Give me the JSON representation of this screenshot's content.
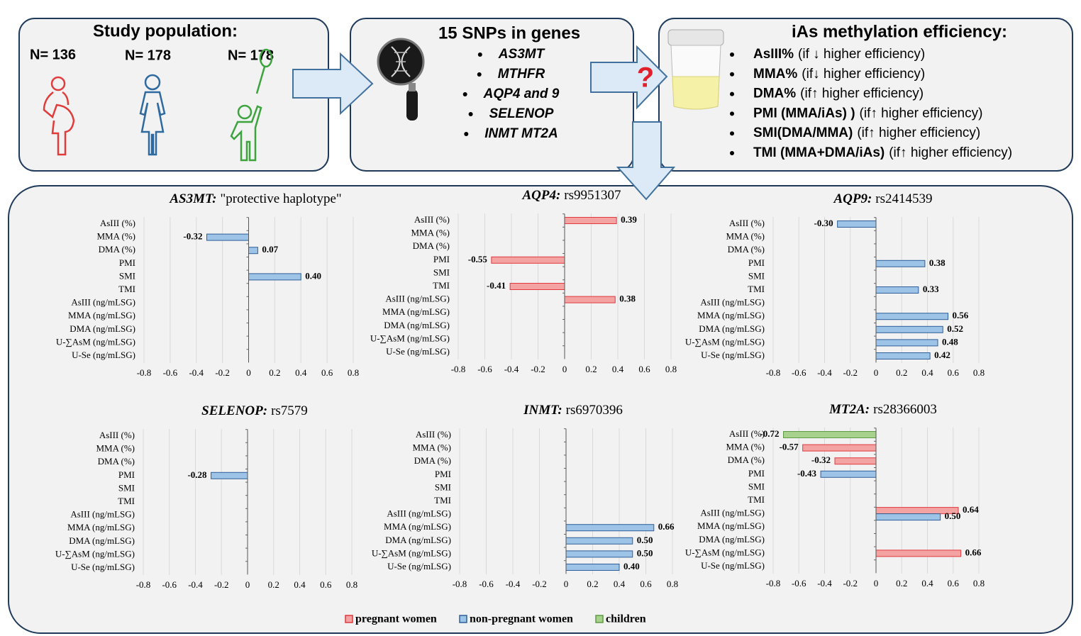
{
  "population": {
    "title": "Study population:",
    "groups": [
      "N= 136",
      "N= 178",
      "N= 178"
    ]
  },
  "snps": {
    "title": "15 SNPs in genes",
    "genes": [
      "AS3MT",
      "MTHFR",
      "AQP4 and 9",
      "SELENOP",
      "INMT MT2A"
    ]
  },
  "question": "?",
  "efficiency": {
    "title": "iAs methylation efficiency:",
    "items": [
      {
        "term": "AsIII%",
        "note": "(if ↓ higher efficiency)"
      },
      {
        "term": "MMA%",
        "note": "(if↓ higher efficiency)"
      },
      {
        "term": "DMA%",
        "note": "(if↑ higher efficiency)"
      },
      {
        "term": "PMI (MMA/iAs) )",
        "note": "(if↑ higher efficiency)"
      },
      {
        "term": "SMI(DMA/MMA)",
        "note": "(if↑ higher efficiency)"
      },
      {
        "term": "TMI (MMA+DMA/iAs)",
        "note": "(if↑ higher efficiency)"
      }
    ]
  },
  "legend": [
    {
      "name": "pregnant women",
      "color": "#f4a3a3",
      "edge": "#e0393e"
    },
    {
      "name": "non-pregnant women",
      "color": "#9dc3e6",
      "edge": "#2e5f9a"
    },
    {
      "name": "children",
      "color": "#a9d18e",
      "edge": "#5f9a45"
    }
  ],
  "chart_data": [
    {
      "type": "bar",
      "orientation": "horizontal",
      "title": "AS3MT:",
      "subtitle": "\"protective haplotype\"",
      "categories": [
        "AsIII (%)",
        "MMA (%)",
        "DMA (%)",
        "PMI",
        "SMI",
        "TMI",
        "AsIII (ng/mLSG)",
        "MMA  (ng/mLSG)",
        "DMA (ng/mLSG)",
        "U-∑AsM (ng/mLSG)",
        "U-Se (ng/mLSG)"
      ],
      "series": [
        {
          "values": [
            null,
            null,
            null,
            null,
            null,
            null,
            null,
            null,
            null,
            null,
            null
          ],
          "value_labels": [
            null,
            null,
            null,
            null,
            null,
            null,
            null,
            null,
            null,
            null,
            null
          ]
        },
        {
          "values": [
            null,
            -0.32,
            0.07,
            null,
            0.4,
            null,
            null,
            null,
            null,
            null,
            null
          ],
          "value_labels": [
            null,
            "-0.32",
            "0.07",
            null,
            "0.40",
            null,
            null,
            null,
            null,
            null,
            null
          ]
        },
        {
          "values": [
            null,
            null,
            null,
            null,
            null,
            null,
            null,
            null,
            null,
            null,
            null
          ],
          "value_labels": [
            null,
            null,
            null,
            null,
            null,
            null,
            null,
            null,
            null,
            null,
            null
          ]
        }
      ],
      "xlim": [
        -0.8,
        0.8
      ],
      "xticks": [
        -0.8,
        -0.6,
        -0.4,
        -0.2,
        0,
        0.2,
        0.4,
        0.6,
        0.8
      ],
      "grid": true
    },
    {
      "type": "bar",
      "orientation": "horizontal",
      "title": "AQP4:",
      "subtitle": "rs9951307",
      "categories": [
        "AsIII (%)",
        "MMA (%)",
        "DMA (%)",
        "PMI",
        "SMI",
        "TMI",
        "AsIII (ng/mLSG)",
        "MMA  (ng/mLSG)",
        "DMA (ng/mLSG)",
        "U-∑AsM (ng/mLSG)",
        "U-Se (ng/mLSG)"
      ],
      "series": [
        {
          "values": [
            0.39,
            null,
            null,
            -0.55,
            null,
            -0.41,
            0.38,
            null,
            null,
            null,
            null
          ],
          "value_labels": [
            "0.39",
            null,
            null,
            "-0.55",
            null,
            "-0.41",
            "0.38",
            null,
            null,
            null,
            null
          ]
        },
        {
          "values": [
            null,
            null,
            null,
            null,
            null,
            null,
            null,
            null,
            null,
            null,
            null
          ],
          "value_labels": [
            null,
            null,
            null,
            null,
            null,
            null,
            null,
            null,
            null,
            null,
            null
          ]
        },
        {
          "values": [
            null,
            null,
            null,
            null,
            null,
            null,
            null,
            null,
            null,
            null,
            null
          ],
          "value_labels": [
            null,
            null,
            null,
            null,
            null,
            null,
            null,
            null,
            null,
            null,
            null
          ]
        }
      ],
      "xlim": [
        -0.8,
        0.8
      ],
      "xticks": [
        -0.8,
        -0.6,
        -0.4,
        -0.2,
        0,
        0.2,
        0.4,
        0.6,
        0.8
      ],
      "grid": true
    },
    {
      "type": "bar",
      "orientation": "horizontal",
      "title": "AQP9:",
      "subtitle": "rs2414539",
      "categories": [
        "AsIII (%)",
        "MMA (%)",
        "DMA (%)",
        "PMI",
        "SMI",
        "TMI",
        "AsIII (ng/mLSG)",
        "MMA  (ng/mLSG)",
        "DMA (ng/mLSG)",
        "U-∑AsM (ng/mLSG)",
        "U-Se (ng/mLSG)"
      ],
      "series": [
        {
          "values": [
            null,
            null,
            null,
            null,
            null,
            null,
            null,
            null,
            null,
            null,
            null
          ],
          "value_labels": [
            null,
            null,
            null,
            null,
            null,
            null,
            null,
            null,
            null,
            null,
            null
          ]
        },
        {
          "values": [
            -0.3,
            null,
            null,
            0.38,
            null,
            0.33,
            null,
            0.56,
            0.52,
            0.48,
            0.42
          ],
          "value_labels": [
            "-0.30",
            null,
            null,
            "0.38",
            null,
            "0.33",
            null,
            "0.56",
            "0.52",
            "0.48",
            "0.42"
          ]
        },
        {
          "values": [
            null,
            null,
            null,
            null,
            null,
            null,
            null,
            null,
            null,
            null,
            null
          ],
          "value_labels": [
            null,
            null,
            null,
            null,
            null,
            null,
            null,
            null,
            null,
            null,
            null
          ]
        }
      ],
      "xlim": [
        -0.8,
        0.8
      ],
      "xticks": [
        -0.8,
        -0.6,
        -0.4,
        -0.2,
        0,
        0.2,
        0.4,
        0.6,
        0.8
      ],
      "grid": true
    },
    {
      "type": "bar",
      "orientation": "horizontal",
      "title": "SELENOP:",
      "subtitle": "rs7579",
      "categories": [
        "AsIII (%)",
        "MMA (%)",
        "DMA (%)",
        "PMI",
        "SMI",
        "TMI",
        "AsIII (ng/mLSG)",
        "MMA  (ng/mLSG)",
        "DMA (ng/mLSG)",
        "U-∑AsM (ng/mLSG)",
        "U-Se (ng/mLSG)"
      ],
      "series": [
        {
          "values": [
            null,
            null,
            null,
            null,
            null,
            null,
            null,
            null,
            null,
            null,
            null
          ],
          "value_labels": [
            null,
            null,
            null,
            null,
            null,
            null,
            null,
            null,
            null,
            null,
            null
          ]
        },
        {
          "values": [
            null,
            null,
            null,
            -0.28,
            null,
            null,
            null,
            null,
            null,
            null,
            null
          ],
          "value_labels": [
            null,
            null,
            null,
            "-0.28",
            null,
            null,
            null,
            null,
            null,
            null,
            null
          ]
        },
        {
          "values": [
            null,
            null,
            null,
            null,
            null,
            null,
            null,
            null,
            null,
            null,
            null
          ],
          "value_labels": [
            null,
            null,
            null,
            null,
            null,
            null,
            null,
            null,
            null,
            null,
            null
          ]
        }
      ],
      "xlim": [
        -0.8,
        0.8
      ],
      "xticks": [
        -0.8,
        -0.6,
        -0.4,
        -0.2,
        0,
        0.2,
        0.4,
        0.6,
        0.8
      ],
      "grid": true
    },
    {
      "type": "bar",
      "orientation": "horizontal",
      "title": "INMT:",
      "subtitle": "rs6970396",
      "categories": [
        "AsIII (%)",
        "MMA (%)",
        "DMA (%)",
        "PMI",
        "SMI",
        "TMI",
        "AsIII (ng/mLSG)",
        "MMA  (ng/mLSG)",
        "DMA (ng/mLSG)",
        "U-∑AsM (ng/mLSG)",
        "U-Se (ng/mLSG)"
      ],
      "series": [
        {
          "values": [
            null,
            null,
            null,
            null,
            null,
            null,
            null,
            null,
            null,
            null,
            null
          ],
          "value_labels": [
            null,
            null,
            null,
            null,
            null,
            null,
            null,
            null,
            null,
            null,
            null
          ]
        },
        {
          "values": [
            null,
            null,
            null,
            null,
            null,
            null,
            null,
            0.66,
            0.5,
            0.5,
            0.4
          ],
          "value_labels": [
            null,
            null,
            null,
            null,
            null,
            null,
            null,
            "0.66",
            "0.50",
            "0.50",
            "0.40"
          ]
        },
        {
          "values": [
            null,
            null,
            null,
            null,
            null,
            null,
            null,
            null,
            null,
            null,
            null
          ],
          "value_labels": [
            null,
            null,
            null,
            null,
            null,
            null,
            null,
            null,
            null,
            null,
            null
          ]
        }
      ],
      "xlim": [
        -0.8,
        0.8
      ],
      "xticks": [
        -0.8,
        -0.6,
        -0.4,
        -0.2,
        0,
        0.2,
        0.4,
        0.6,
        0.8
      ],
      "grid": true
    },
    {
      "type": "bar",
      "orientation": "horizontal",
      "title": "MT2A:",
      "subtitle": "rs28366003",
      "categories": [
        "AsIII (%)",
        "MMA (%)",
        "DMA (%)",
        "PMI",
        "SMI",
        "TMI",
        "AsIII (ng/mLSG)",
        "MMA  (ng/mLSG)",
        "DMA (ng/mLSG)",
        "U-∑AsM (ng/mLSG)",
        "U-Se (ng/mLSG)"
      ],
      "series": [
        {
          "values": [
            null,
            -0.57,
            -0.32,
            null,
            null,
            null,
            0.64,
            null,
            null,
            0.66,
            null
          ],
          "value_labels": [
            null,
            "-0.57",
            "-0.32",
            null,
            null,
            null,
            "0.64",
            null,
            null,
            "0.66",
            null
          ]
        },
        {
          "values": [
            null,
            null,
            null,
            -0.43,
            null,
            null,
            0.5,
            null,
            null,
            null,
            null
          ],
          "value_labels": [
            null,
            null,
            null,
            "-0.43",
            null,
            null,
            "0.50",
            null,
            null,
            null,
            null
          ]
        },
        {
          "values": [
            -0.72,
            null,
            null,
            null,
            null,
            null,
            null,
            null,
            null,
            null,
            null
          ],
          "value_labels": [
            "-0.72",
            null,
            null,
            null,
            null,
            null,
            null,
            null,
            null,
            null,
            null
          ]
        }
      ],
      "xlim": [
        -0.8,
        0.8
      ],
      "xticks": [
        -0.8,
        -0.6,
        -0.4,
        -0.2,
        0,
        0.2,
        0.4,
        0.6,
        0.8
      ],
      "grid": true
    }
  ]
}
